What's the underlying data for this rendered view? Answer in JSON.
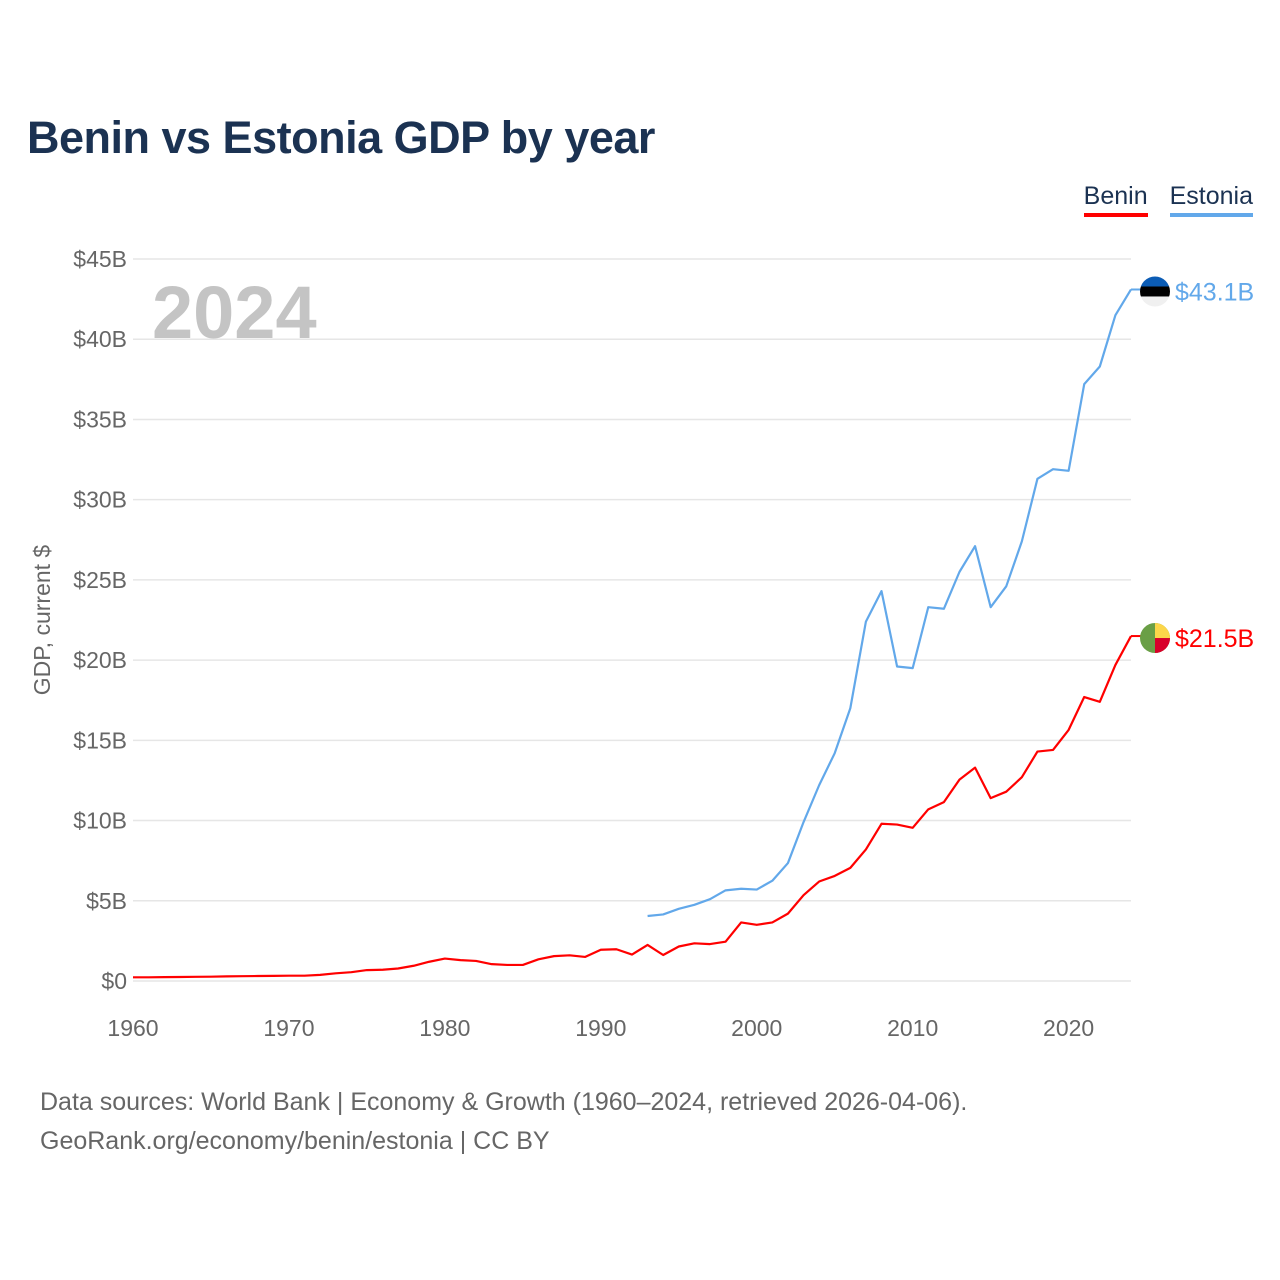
{
  "chart_data": {
    "type": "line",
    "title": "Benin vs Estonia GDP by year",
    "xlabel": "",
    "ylabel": "GDP, current $",
    "xlim": [
      1960,
      2024
    ],
    "ylim": [
      0,
      45
    ],
    "grid": true,
    "legend_position": "top-right",
    "year_label": "2024",
    "x_ticks": [
      1960,
      1970,
      1980,
      1990,
      2000,
      2010,
      2020
    ],
    "y_ticks": [
      0,
      5,
      10,
      15,
      20,
      25,
      30,
      35,
      40,
      45
    ],
    "y_tick_labels": [
      "$0",
      "$5B",
      "$10B",
      "$15B",
      "$20B",
      "$25B",
      "$30B",
      "$35B",
      "$40B",
      "$45B"
    ],
    "series": [
      {
        "name": "Benin",
        "color": "#ff0000",
        "end_label": "$21.5B",
        "flag": "benin-flag",
        "start_year": 1960,
        "values": [
          0.23,
          0.23,
          0.24,
          0.25,
          0.26,
          0.27,
          0.29,
          0.3,
          0.31,
          0.32,
          0.33,
          0.33,
          0.38,
          0.48,
          0.55,
          0.68,
          0.7,
          0.78,
          0.95,
          1.2,
          1.4,
          1.3,
          1.25,
          1.05,
          1.0,
          1.0,
          1.35,
          1.55,
          1.6,
          1.5,
          1.95,
          1.98,
          1.65,
          2.25,
          1.62,
          2.15,
          2.35,
          2.3,
          2.45,
          3.65,
          3.5,
          3.65,
          4.2,
          5.35,
          6.2,
          6.55,
          7.05,
          8.2,
          9.8,
          9.75,
          9.55,
          10.7,
          11.15,
          12.55,
          13.3,
          11.4,
          11.8,
          12.7,
          14.3,
          14.4,
          15.65,
          17.7,
          17.4,
          19.7,
          21.5
        ]
      },
      {
        "name": "Estonia",
        "color": "#62a8ea",
        "end_label": "$43.1B",
        "flag": "estonia-flag",
        "start_year": 1993,
        "values": [
          4.05,
          4.15,
          4.5,
          4.75,
          5.1,
          5.65,
          5.75,
          5.7,
          6.25,
          7.35,
          9.9,
          12.2,
          14.2,
          17.0,
          22.4,
          24.3,
          19.6,
          19.5,
          23.3,
          23.2,
          25.5,
          27.1,
          23.3,
          24.6,
          27.4,
          31.3,
          31.9,
          31.8,
          37.2,
          38.3,
          41.5,
          43.1
        ]
      }
    ]
  },
  "footer": {
    "line1": "Data sources: World Bank | Economy & Growth (1960–2024, retrieved 2026-04-06).",
    "line2": "GeoRank.org/economy/benin/estonia | CC BY"
  }
}
